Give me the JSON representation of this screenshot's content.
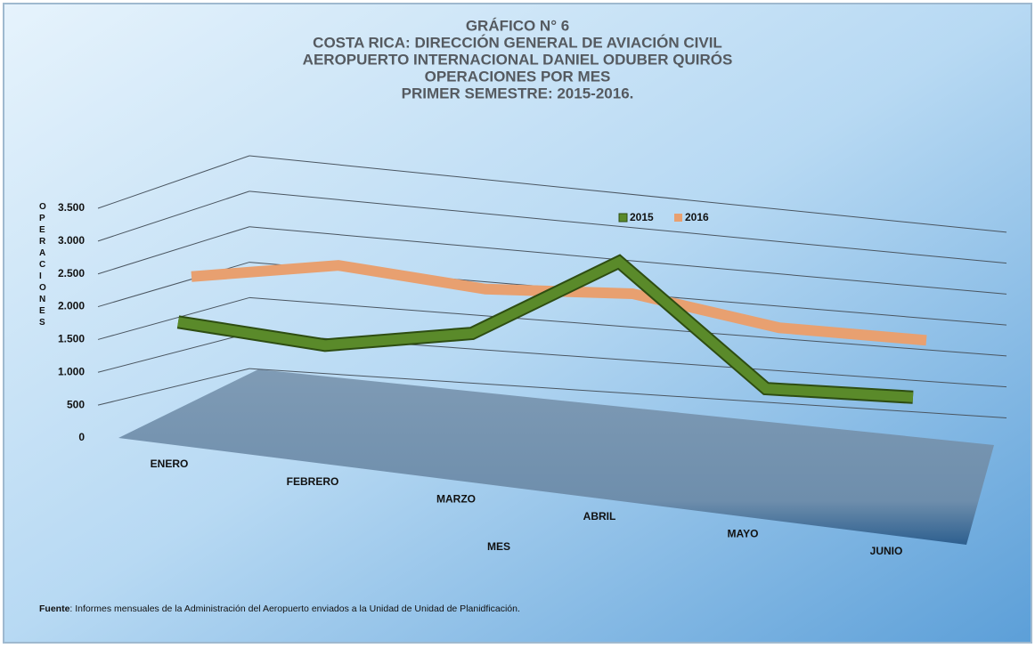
{
  "chart_data": {
    "type": "line",
    "title": [
      "GRÁFICO N° 6",
      "COSTA RICA: DIRECCIÓN GENERAL DE AVIACIÓN CIVIL",
      "AEROPUERTO INTERNACIONAL DANIEL ODUBER QUIRÓS",
      "OPERACIONES POR MES",
      "PRIMER SEMESTRE: 2015-2016."
    ],
    "y_label": "OPERACIONES",
    "x_label": "MES",
    "categories": [
      "ENERO",
      "FEBRERO",
      "MARZO",
      "ABRIL",
      "MAYO",
      "JUNIO"
    ],
    "series": [
      {
        "name": "2015",
        "color": "#5a8a2a",
        "values": [
          1800,
          1500,
          1750,
          3000,
          950,
          850
        ]
      },
      {
        "name": "2016",
        "color": "#e8a070",
        "values": [
          2200,
          2450,
          2150,
          2150,
          1650,
          1500
        ]
      }
    ],
    "ylim": [
      0,
      3500
    ],
    "yticks": [
      0,
      500,
      {
        "value": 1000,
        "label": "1.000"
      },
      {
        "value": 1500,
        "label": "1.500"
      },
      {
        "value": 2000,
        "label": "2.000"
      },
      {
        "value": 2500,
        "label": "2.500"
      },
      {
        "value": 3000,
        "label": "3.000"
      },
      {
        "value": 3500,
        "label": "3.500"
      }
    ],
    "grid": true,
    "legend": "top",
    "source_label": "Fuente",
    "source": ": Informes mensuales  de la Administración del Aeropuerto enviados  a la Unidad de Unidad de Planidficación."
  }
}
